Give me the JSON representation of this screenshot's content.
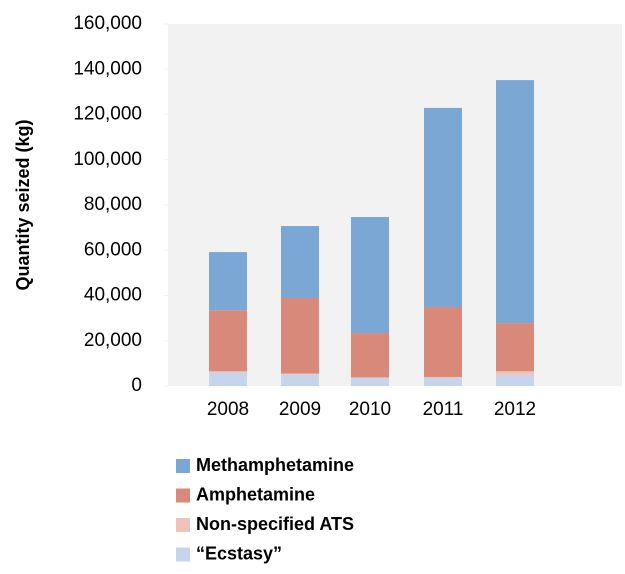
{
  "chart_data": {
    "type": "stacked_bar",
    "y_label": "Quantity seized (kg)",
    "categories": [
      "2008",
      "2009",
      "2010",
      "2011",
      "2012"
    ],
    "series": [
      {
        "name": "Methamphetamine",
        "color": "#7ba7d4",
        "values": [
          25700,
          31800,
          51300,
          88000,
          107400
        ]
      },
      {
        "name": "Amphetamine",
        "color": "#d9897a",
        "values": [
          27000,
          33400,
          19600,
          30900,
          21300
        ]
      },
      {
        "name": "Non-specified ATS",
        "color": "#f0c3b8",
        "values": [
          500,
          500,
          300,
          500,
          1500
        ]
      },
      {
        "name": "“Ecstasy”",
        "color": "#c6d5ec",
        "values": [
          6000,
          5000,
          3500,
          3500,
          5000
        ]
      }
    ],
    "ylim": [
      0,
      160000
    ],
    "yticks": [
      0,
      {
        "value": 20000,
        "label": "20,000"
      },
      {
        "value": 40000,
        "label": "40,000"
      },
      {
        "value": 60000,
        "label": "60,000"
      },
      {
        "value": 80000,
        "label": "80,000"
      },
      {
        "value": 100000,
        "label": "100,000"
      },
      {
        "value": 120000,
        "label": "120,000"
      },
      {
        "value": 140000,
        "label": "140,000"
      },
      {
        "value": 160000,
        "label": "160,000"
      }
    ],
    "legend": "bottom"
  }
}
